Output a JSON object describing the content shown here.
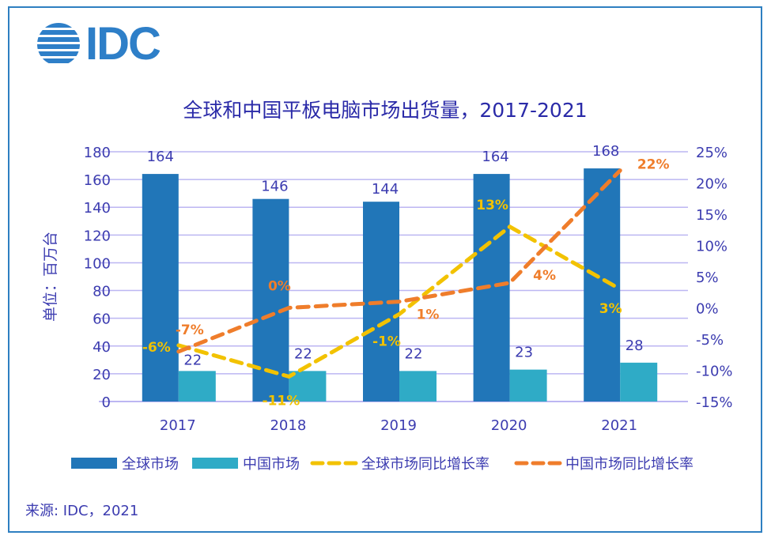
{
  "logo": {
    "text": "IDC",
    "icon": "idc-globe-icon"
  },
  "source": "来源: IDC，2021",
  "colors": {
    "global_bar": "#2176b8",
    "china_bar": "#2fabc6",
    "global_growth": "#f2c200",
    "china_growth": "#ef7d2b",
    "text": "#3c3cb0",
    "grid": "#bcb6f2"
  },
  "chart_data": {
    "type": "bar",
    "title": "全球和中国平板电脑市场出货量，2017-2021",
    "categories": [
      "2017",
      "2018",
      "2019",
      "2020",
      "2021"
    ],
    "ylabel": "单位：百万台",
    "ylim": [
      0,
      180
    ],
    "yticks": [
      0,
      20,
      40,
      60,
      80,
      100,
      120,
      140,
      160,
      180
    ],
    "y2lim": [
      -15,
      25
    ],
    "y2ticks": [
      "-15%",
      "-10%",
      "-5%",
      "0%",
      "5%",
      "10%",
      "15%",
      "20%",
      "25%"
    ],
    "y2tick_values": [
      -15,
      -10,
      -5,
      0,
      5,
      10,
      15,
      20,
      25
    ],
    "grid": true,
    "legend_position": "bottom",
    "series": [
      {
        "name": "全球市场",
        "kind": "bar",
        "axis": "left",
        "values": [
          164,
          146,
          144,
          164,
          168
        ],
        "labels": [
          "164",
          "146",
          "144",
          "164",
          "168"
        ]
      },
      {
        "name": "中国市场",
        "kind": "bar",
        "axis": "left",
        "values": [
          22,
          22,
          22,
          23,
          28
        ],
        "labels": [
          "22",
          "22",
          "22",
          "23",
          "28"
        ]
      },
      {
        "name": "全球市场同比增长率",
        "kind": "line",
        "style": "dashed",
        "axis": "right",
        "values": [
          -6,
          -11,
          -1,
          13,
          3
        ],
        "labels": [
          "-6%",
          "-11%",
          "-1%",
          "13%",
          "3%"
        ]
      },
      {
        "name": "中国市场同比增长率",
        "kind": "line",
        "style": "dashed",
        "axis": "right",
        "values": [
          -7,
          0,
          1,
          4,
          22
        ],
        "labels": [
          "-7%",
          "0%",
          "1%",
          "4%",
          "22%"
        ]
      }
    ]
  }
}
